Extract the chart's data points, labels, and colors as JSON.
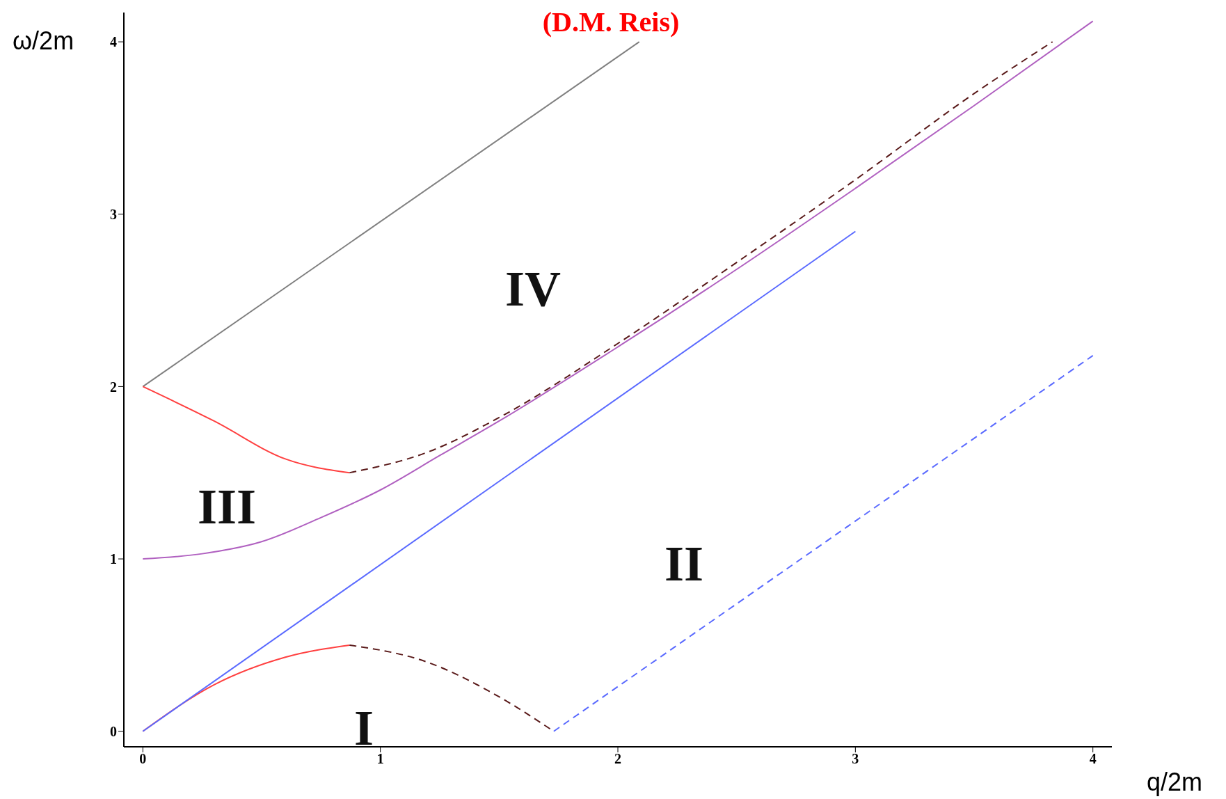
{
  "chart_data": {
    "type": "line",
    "title": "(D.M. Reis)",
    "xlabel": "q/2m",
    "ylabel": "ω/2m",
    "xlim": [
      -0.08,
      4.08
    ],
    "ylim": [
      -0.09,
      4.17
    ],
    "xticks": [
      0,
      1,
      2,
      3,
      4
    ],
    "yticks": [
      0,
      1,
      2,
      3,
      4
    ],
    "grid": false,
    "legend": false,
    "series": [
      {
        "color": "#808080",
        "line_style": "solid",
        "x": [
          0,
          2.09
        ],
        "values": [
          2,
          4.0
        ]
      },
      {
        "color": "#b060c0",
        "line_style": "solid",
        "x": [
          0,
          0.25,
          0.5,
          0.75,
          1,
          1.25,
          1.5,
          2,
          2.5,
          3,
          3.5,
          4
        ],
        "values": [
          1,
          1.03,
          1.1,
          1.24,
          1.4,
          1.6,
          1.8,
          2.23,
          2.68,
          3.15,
          3.63,
          4.12
        ]
      },
      {
        "color": "#5a1a1a",
        "line_style": "dashed",
        "x": [
          0.87,
          1.2,
          1.5,
          2,
          2.5,
          3,
          3.5,
          3.83
        ],
        "values": [
          1.5,
          1.62,
          1.82,
          2.25,
          2.72,
          3.2,
          3.7,
          4.0
        ]
      },
      {
        "color": "#ff4040",
        "line_style": "solid",
        "x": [
          0,
          0.3,
          0.6,
          0.87
        ],
        "values": [
          2,
          1.8,
          1.58,
          1.5
        ]
      },
      {
        "color": "#ff4040",
        "line_style": "solid",
        "x": [
          0,
          0.3,
          0.6,
          0.87
        ],
        "values": [
          0,
          0.27,
          0.43,
          0.5
        ]
      },
      {
        "color": "#5a1a1a",
        "line_style": "dashed",
        "x": [
          0.87,
          1.2,
          1.5,
          1.73
        ],
        "values": [
          0.5,
          0.4,
          0.2,
          0
        ]
      },
      {
        "color": "#5a6aff",
        "line_style": "solid",
        "x": [
          0,
          3
        ],
        "values": [
          0,
          2.9
        ]
      },
      {
        "color": "#5a6aff",
        "line_style": "dashed",
        "x": [
          1.73,
          4
        ],
        "values": [
          0,
          2.18
        ]
      }
    ],
    "annotations": [
      "I",
      "II",
      "III",
      "IV"
    ]
  }
}
